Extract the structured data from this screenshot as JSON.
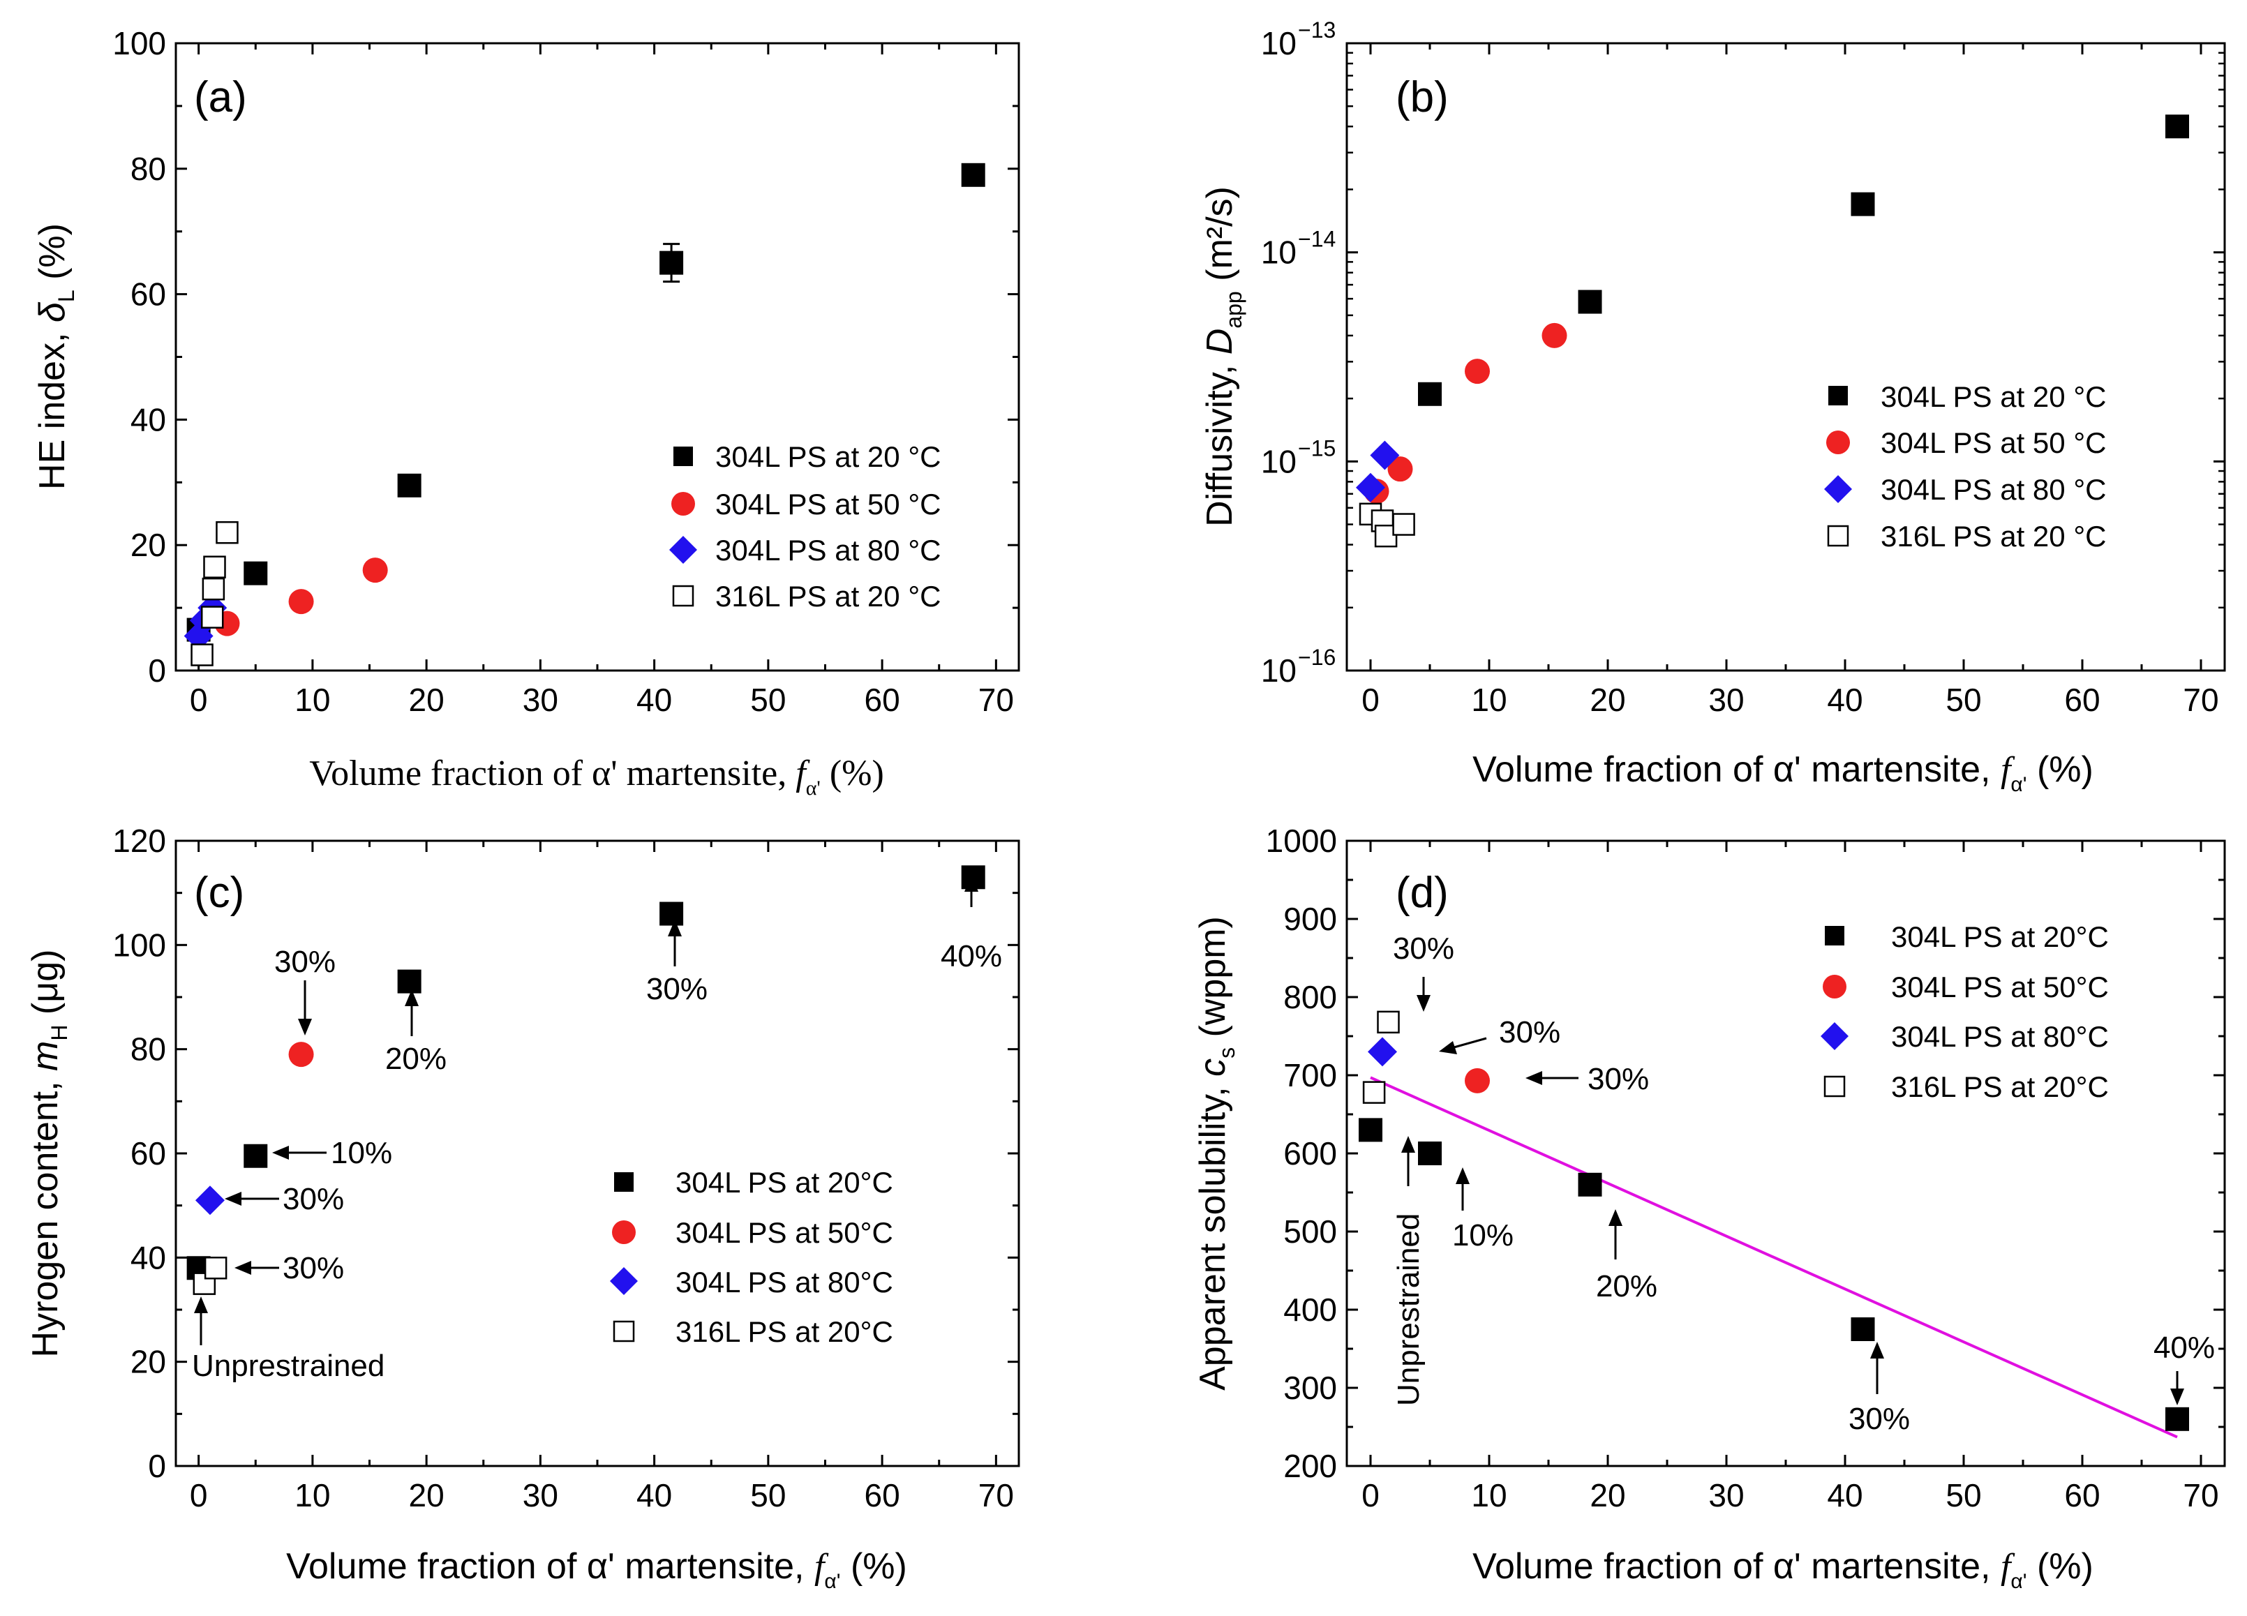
{
  "colors": {
    "s20": "#000000",
    "s50": "#ee2222",
    "s80": "#2211ee",
    "s316": "#ffffff",
    "fit": "#e010e0"
  },
  "chart_data": [
    {
      "type": "scatter",
      "panel_label": "(a)",
      "xlabel": "Volume fraction of α' martensite,",
      "xlabel_sym": "f",
      "xlabel_sub": "α'",
      "xlabel_unit": "(%)",
      "ylabel": "HE index,",
      "ylabel_sym": "δ",
      "ylabel_sub": "L",
      "ylabel_unit": "(%)",
      "xlim": [
        -2,
        72
      ],
      "ylim": [
        0,
        100
      ],
      "xticks": [
        "0",
        "10",
        "20",
        "30",
        "40",
        "50",
        "60",
        "70"
      ],
      "yticks": [
        "0",
        "20",
        "40",
        "60",
        "80",
        "100"
      ],
      "legend": [
        "304L PS at 20 °C",
        "304L PS at 50 °C",
        "304L PS at 80 °C",
        "316L PS at 20 °C"
      ],
      "series": [
        {
          "name": "304L PS at 20 °C",
          "marker": "square",
          "x": [
            0,
            5,
            18.5,
            41.5,
            68
          ],
          "y": [
            6.5,
            15.5,
            29.5,
            65,
            79
          ],
          "yerr": [
            0,
            0,
            0,
            3,
            0
          ]
        },
        {
          "name": "304L PS at 50 °C",
          "marker": "circle",
          "x": [
            2.5,
            9,
            15.5
          ],
          "y": [
            7.5,
            11,
            16
          ]
        },
        {
          "name": "304L PS at 80 °C",
          "marker": "diamond",
          "x": [
            0,
            0.5,
            1.2
          ],
          "y": [
            5.5,
            8,
            10
          ]
        },
        {
          "name": "316L PS at 20 °C",
          "marker": "open-square",
          "x": [
            0.3,
            1.2,
            1.3,
            1.4,
            2.5
          ],
          "y": [
            2.5,
            8.5,
            13,
            16.5,
            22
          ]
        }
      ]
    },
    {
      "type": "scatter",
      "panel_label": "(b)",
      "yscale": "log",
      "xlabel": "Volume fraction of α' martensite,",
      "xlabel_sym": "f",
      "xlabel_sub": "α'",
      "xlabel_unit": "(%)",
      "ylabel": "Diffusivity,",
      "ylabel_sym": "D",
      "ylabel_sub": "app",
      "ylabel_unit": "(m²/s)",
      "xlim": [
        -2,
        72
      ],
      "ylim_exp": [
        -16,
        -13
      ],
      "xticks": [
        "0",
        "10",
        "20",
        "30",
        "40",
        "50",
        "60",
        "70"
      ],
      "yticks_exp": [
        "-16",
        "-15",
        "-14",
        "-13"
      ],
      "ytick_base": "10",
      "legend": [
        "304L PS at 20 °C",
        "304L PS at 50 °C",
        "304L PS at 80 °C",
        "316L PS at 20 °C"
      ],
      "series": [
        {
          "name": "304L PS at 20 °C",
          "marker": "square",
          "x": [
            5,
            18.5,
            41.5,
            68
          ],
          "y": [
            2.1e-15,
            5.8e-15,
            1.7e-14,
            4e-14
          ]
        },
        {
          "name": "304L PS at 50 °C",
          "marker": "circle",
          "x": [
            0.5,
            2.5,
            9,
            15.5
          ],
          "y": [
            7.2e-16,
            9.2e-16,
            2.7e-15,
            4e-15
          ]
        },
        {
          "name": "304L PS at 80 °C",
          "marker": "diamond",
          "x": [
            0,
            1.2
          ],
          "y": [
            7.5e-16,
            1.07e-15
          ]
        },
        {
          "name": "316L PS at 20 °C",
          "marker": "open-square",
          "x": [
            0,
            1,
            1.3,
            2.8
          ],
          "y": [
            5.6e-16,
            5.2e-16,
            4.4e-16,
            5e-16
          ]
        }
      ]
    },
    {
      "type": "scatter",
      "panel_label": "(c)",
      "xlabel": "Volume fraction of α' martensite,",
      "xlabel_sym": "f",
      "xlabel_sub": "α'",
      "xlabel_unit": "(%)",
      "ylabel": "Hyrogen content,",
      "ylabel_sym": "m",
      "ylabel_sub": "H",
      "ylabel_unit": "(μg)",
      "xlim": [
        -2,
        72
      ],
      "ylim": [
        0,
        120
      ],
      "xticks": [
        "0",
        "10",
        "20",
        "30",
        "40",
        "50",
        "60",
        "70"
      ],
      "yticks": [
        "0",
        "20",
        "40",
        "60",
        "80",
        "100",
        "120"
      ],
      "legend": [
        "304L PS at 20°C",
        "304L PS at 50°C",
        "304L PS at 80°C",
        "316L PS at 20°C"
      ],
      "series": [
        {
          "name": "304L PS at 20°C",
          "marker": "square",
          "x": [
            0,
            5,
            18.5,
            41.5,
            68
          ],
          "y": [
            38,
            59.5,
            93,
            106,
            113
          ]
        },
        {
          "name": "304L PS at 50°C",
          "marker": "circle",
          "x": [
            9
          ],
          "y": [
            79
          ]
        },
        {
          "name": "304L PS at 80°C",
          "marker": "diamond",
          "x": [
            1
          ],
          "y": [
            51
          ]
        },
        {
          "name": "316L PS at 20°C",
          "marker": "open-square",
          "x": [
            0.5,
            1.5
          ],
          "y": [
            35,
            38
          ]
        }
      ],
      "annotations": [
        "30%",
        "20%",
        "30%",
        "40%",
        "10%",
        "30%",
        "30%",
        "Unprestrained"
      ]
    },
    {
      "type": "scatter",
      "panel_label": "(d)",
      "xlabel": "Volume fraction of α' martensite,",
      "xlabel_sym": "f",
      "xlabel_sub": "α'",
      "xlabel_unit": "(%)",
      "ylabel": "Apparent solubility,",
      "ylabel_sym": "c",
      "ylabel_sub": "s",
      "ylabel_unit": "(wppm)",
      "xlim": [
        -2,
        72
      ],
      "ylim": [
        200,
        1000
      ],
      "xticks": [
        "0",
        "10",
        "20",
        "30",
        "40",
        "50",
        "60",
        "70"
      ],
      "yticks": [
        "200",
        "300",
        "400",
        "500",
        "600",
        "700",
        "800",
        "900",
        "1000"
      ],
      "legend": [
        "304L PS at 20°C",
        "304L PS at 50°C",
        "304L PS at 80°C",
        "316L PS at 20°C"
      ],
      "series": [
        {
          "name": "304L PS at 20°C",
          "marker": "square",
          "x": [
            0,
            5,
            18.5,
            41.5,
            68
          ],
          "y": [
            630,
            600,
            560,
            375,
            260
          ]
        },
        {
          "name": "304L PS at 50°C",
          "marker": "circle",
          "x": [
            9
          ],
          "y": [
            693
          ]
        },
        {
          "name": "304L PS at 80°C",
          "marker": "diamond",
          "x": [
            1
          ],
          "y": [
            730
          ]
        },
        {
          "name": "316L PS at 20°C",
          "marker": "open-square",
          "x": [
            0.3,
            1.5
          ],
          "y": [
            678,
            768
          ]
        }
      ],
      "fit_line": {
        "x": [
          0,
          68
        ],
        "y": [
          697,
          237
        ]
      },
      "annotations": [
        "30%",
        "30%",
        "30%",
        "10%",
        "20%",
        "30%",
        "40%",
        "Unprestrained"
      ]
    }
  ]
}
